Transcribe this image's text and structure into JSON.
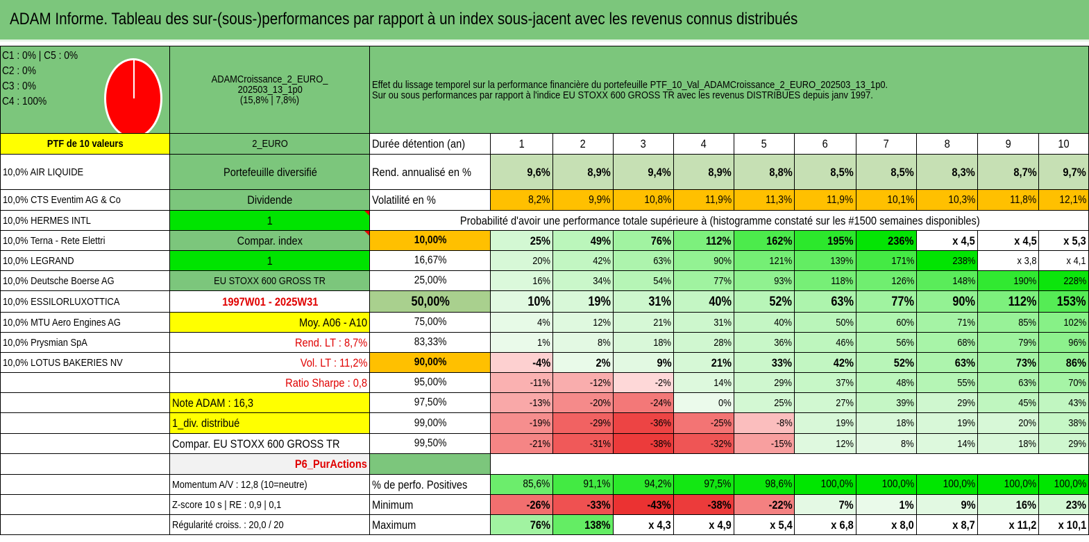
{
  "title": "ADAM Informe. Tableau des sur-(sous-)performances par rapport à un index sous-jacent avec les revenus connus distribués",
  "pie": {
    "legend": [
      "C1 : 0% | C5 : 0%",
      "C2 : 0%",
      "C3 : 0%",
      "C4 : 100%"
    ],
    "color": "#ff0000"
  },
  "portfolio": {
    "name_line1": "ADAMCroissance_2_EURO_",
    "name_line2": "202503_13_1p0",
    "name_line3": "(15,8% | 7,8%)"
  },
  "description": {
    "line1": "Effet du lissage temporel sur la performance financière du portefeuille PTF_10_Val_ADAMCroissance_2_EURO_202503_13_1p0.",
    "line2": "Sur ou sous performances par rapport à l'indice EU STOXX 600 GROSS TR avec les revenus DISTRIBUES depuis janv 1997."
  },
  "holdings_header": "PTF de 10 valeurs",
  "holdings": [
    "10,0% AIR LIQUIDE",
    "10,0% CTS Eventim AG & Co",
    "10,0% HERMES INTL",
    "10,0% Terna - Rete Elettri",
    "10,0% LEGRAND",
    "10,0% Deutsche Boerse AG",
    "10,0% ESSILORLUXOTTICA",
    "10,0% MTU Aero Engines AG",
    "10,0% Prysmian SpA",
    "10,0% LOTUS BAKERIES NV"
  ],
  "info": {
    "currency": "2_EURO",
    "diversified": "Portefeuille diversifié",
    "dividend_label": "Dividende",
    "dividend_value": "1",
    "compar_index_label": "Compar. index",
    "compar_index_value": "1",
    "index_name": "EU STOXX 600 GROSS TR",
    "period": "1997W01 - 2025W31",
    "moy": "Moy. A06 - A10",
    "rend_lt": "Rend. LT : 8,7%",
    "vol_lt": "Vol. LT : 11,2%",
    "sharpe": "Ratio Sharpe : 0,8",
    "note": "Note ADAM : 16,3",
    "div": "1_div. distribué",
    "compar": "Compar. EU STOXX 600 GROSS TR",
    "p6": "P6_PurActions",
    "momentum": "Momentum A/V : 12,8 (10=neutre)",
    "zscore": "Z-score 10 s | RE : 0,9 | 0,1",
    "regularite": "Régularité croiss. : 20,0 / 20"
  },
  "table": {
    "duration_label": "Durée détention (an)",
    "years": [
      "1",
      "2",
      "3",
      "4",
      "5",
      "6",
      "7",
      "8",
      "9",
      "10"
    ],
    "rend_label": "Rend. annualisé en %",
    "rend": [
      "9,6%",
      "8,9%",
      "9,4%",
      "8,9%",
      "8,8%",
      "8,5%",
      "8,5%",
      "8,3%",
      "8,7%",
      "9,7%"
    ],
    "vol_label": "Volatilité en %",
    "vol": [
      "8,2%",
      "9,9%",
      "10,8%",
      "11,9%",
      "11,3%",
      "11,9%",
      "10,1%",
      "10,3%",
      "11,8%",
      "12,1%"
    ],
    "proba_label": "Probabilité d'avoir une performance totale supérieure à (histogramme constaté sur les #1500 semaines disponibles)",
    "quantiles": [
      {
        "q": "10,00%",
        "vals": [
          "25%",
          "49%",
          "76%",
          "112%",
          "162%",
          "195%",
          "236%",
          "x 4,5",
          "x 4,5",
          "x 5,3"
        ]
      },
      {
        "q": "16,67%",
        "vals": [
          "20%",
          "42%",
          "63%",
          "90%",
          "121%",
          "139%",
          "171%",
          "238%",
          "x 3,8",
          "x 4,1"
        ]
      },
      {
        "q": "25,00%",
        "vals": [
          "16%",
          "34%",
          "54%",
          "77%",
          "93%",
          "118%",
          "126%",
          "148%",
          "190%",
          "228%"
        ]
      },
      {
        "q": "50,00%",
        "vals": [
          "10%",
          "19%",
          "31%",
          "40%",
          "52%",
          "63%",
          "77%",
          "90%",
          "112%",
          "153%"
        ]
      },
      {
        "q": "75,00%",
        "vals": [
          "4%",
          "12%",
          "21%",
          "31%",
          "40%",
          "50%",
          "60%",
          "71%",
          "85%",
          "102%"
        ]
      },
      {
        "q": "83,33%",
        "vals": [
          "1%",
          "8%",
          "18%",
          "28%",
          "36%",
          "46%",
          "56%",
          "68%",
          "79%",
          "96%"
        ]
      },
      {
        "q": "90,00%",
        "vals": [
          "-4%",
          "2%",
          "9%",
          "21%",
          "33%",
          "42%",
          "52%",
          "63%",
          "73%",
          "86%"
        ]
      },
      {
        "q": "95,00%",
        "vals": [
          "-11%",
          "-12%",
          "-2%",
          "14%",
          "29%",
          "37%",
          "48%",
          "55%",
          "63%",
          "70%"
        ]
      },
      {
        "q": "97,50%",
        "vals": [
          "-13%",
          "-20%",
          "-24%",
          "0%",
          "25%",
          "27%",
          "39%",
          "29%",
          "45%",
          "43%"
        ]
      },
      {
        "q": "99,00%",
        "vals": [
          "-19%",
          "-29%",
          "-36%",
          "-25%",
          "-8%",
          "19%",
          "18%",
          "19%",
          "20%",
          "38%"
        ]
      },
      {
        "q": "99,50%",
        "vals": [
          "-21%",
          "-31%",
          "-38%",
          "-32%",
          "-15%",
          "12%",
          "8%",
          "14%",
          "18%",
          "29%"
        ]
      }
    ],
    "pos_label": "% de perfo. Positives",
    "pos": [
      "85,6%",
      "91,1%",
      "94,2%",
      "97,5%",
      "98,6%",
      "100,0%",
      "100,0%",
      "100,0%",
      "100,0%",
      "100,0%"
    ],
    "min_label": "Minimum",
    "min": [
      "-26%",
      "-33%",
      "-43%",
      "-38%",
      "-22%",
      "7%",
      "1%",
      "9%",
      "16%",
      "23%"
    ],
    "max_label": "Maximum",
    "max": [
      "76%",
      "138%",
      "x 4,3",
      "x 4,9",
      "x 5,4",
      "x 6,8",
      "x 8,0",
      "x 8,7",
      "x 11,2",
      "x 10,1"
    ]
  },
  "colors": {
    "header_green": "#7cc67c",
    "bright_green": "#00e400",
    "yellow": "#ffff00",
    "orange": "#ffc000",
    "negative_red": "#e00000"
  }
}
